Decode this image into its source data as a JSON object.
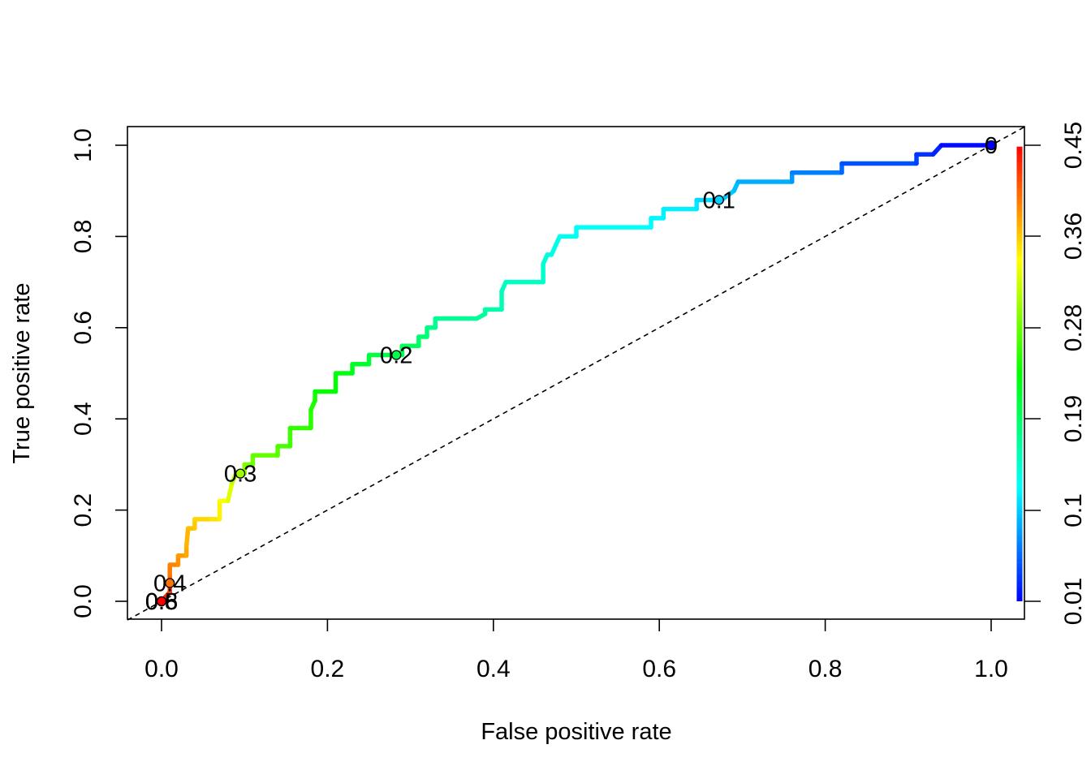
{
  "chart_data": {
    "type": "line",
    "xlabel": "False positive rate",
    "ylabel": "True positive rate",
    "xlim": [
      0,
      1
    ],
    "ylim": [
      0,
      1
    ],
    "x_ticks": [
      0.0,
      0.2,
      0.4,
      0.6,
      0.8,
      1.0
    ],
    "x_tick_labels": [
      "0.0",
      "0.2",
      "0.4",
      "0.6",
      "0.8",
      "1.0"
    ],
    "y_ticks": [
      0.0,
      0.2,
      0.4,
      0.6,
      0.8,
      1.0
    ],
    "y_tick_labels": [
      "0.0",
      "0.2",
      "0.4",
      "0.6",
      "0.8",
      "1.0"
    ],
    "grid": false,
    "diagonal_reference": true,
    "colorbar": {
      "min": 0.01,
      "max": 0.45,
      "ticks": [
        0.01,
        0.1,
        0.19,
        0.28,
        0.36,
        0.45
      ],
      "tick_labels": [
        "0.01",
        "0.1",
        "0.19",
        "0.28",
        "0.36",
        "0.45"
      ],
      "position": "right",
      "palette": "rainbow"
    },
    "roc_curve": {
      "points": [
        [
          0,
          0,
          0.45
        ],
        [
          0.005,
          0.01,
          0.44
        ],
        [
          0.01,
          0.02,
          0.43
        ],
        [
          0.01,
          0.04,
          0.41
        ],
        [
          0.01,
          0.06,
          0.4
        ],
        [
          0.01,
          0.08,
          0.395
        ],
        [
          0.02,
          0.08,
          0.39
        ],
        [
          0.02,
          0.1,
          0.385
        ],
        [
          0.03,
          0.1,
          0.38
        ],
        [
          0.03,
          0.12,
          0.375
        ],
        [
          0.032,
          0.16,
          0.37
        ],
        [
          0.04,
          0.16,
          0.365
        ],
        [
          0.04,
          0.18,
          0.36
        ],
        [
          0.06,
          0.18,
          0.355
        ],
        [
          0.07,
          0.18,
          0.35
        ],
        [
          0.07,
          0.22,
          0.34
        ],
        [
          0.08,
          0.22,
          0.335
        ],
        [
          0.085,
          0.26,
          0.32
        ],
        [
          0.09,
          0.28,
          0.3
        ],
        [
          0.1,
          0.28,
          0.295
        ],
        [
          0.1,
          0.3,
          0.285
        ],
        [
          0.11,
          0.3,
          0.28
        ],
        [
          0.11,
          0.32,
          0.275
        ],
        [
          0.14,
          0.32,
          0.27
        ],
        [
          0.14,
          0.34,
          0.265
        ],
        [
          0.155,
          0.34,
          0.26
        ],
        [
          0.155,
          0.38,
          0.255
        ],
        [
          0.18,
          0.38,
          0.25
        ],
        [
          0.18,
          0.42,
          0.245
        ],
        [
          0.185,
          0.44,
          0.24
        ],
        [
          0.185,
          0.46,
          0.235
        ],
        [
          0.21,
          0.46,
          0.23
        ],
        [
          0.21,
          0.5,
          0.225
        ],
        [
          0.23,
          0.5,
          0.22
        ],
        [
          0.23,
          0.52,
          0.215
        ],
        [
          0.25,
          0.52,
          0.21
        ],
        [
          0.25,
          0.54,
          0.205
        ],
        [
          0.28,
          0.54,
          0.2
        ],
        [
          0.29,
          0.54,
          0.197
        ],
        [
          0.29,
          0.56,
          0.195
        ],
        [
          0.31,
          0.56,
          0.19
        ],
        [
          0.31,
          0.58,
          0.185
        ],
        [
          0.32,
          0.58,
          0.18
        ],
        [
          0.32,
          0.6,
          0.175
        ],
        [
          0.33,
          0.6,
          0.17
        ],
        [
          0.33,
          0.62,
          0.168
        ],
        [
          0.38,
          0.62,
          0.165
        ],
        [
          0.39,
          0.63,
          0.163
        ],
        [
          0.39,
          0.64,
          0.16
        ],
        [
          0.41,
          0.64,
          0.155
        ],
        [
          0.41,
          0.68,
          0.15
        ],
        [
          0.415,
          0.7,
          0.147
        ],
        [
          0.46,
          0.7,
          0.145
        ],
        [
          0.46,
          0.74,
          0.14
        ],
        [
          0.465,
          0.76,
          0.135
        ],
        [
          0.47,
          0.76,
          0.133
        ],
        [
          0.475,
          0.78,
          0.13
        ],
        [
          0.48,
          0.8,
          0.128
        ],
        [
          0.5,
          0.8,
          0.126
        ],
        [
          0.5,
          0.82,
          0.125
        ],
        [
          0.59,
          0.82,
          0.12
        ],
        [
          0.59,
          0.84,
          0.118
        ],
        [
          0.605,
          0.84,
          0.116
        ],
        [
          0.605,
          0.86,
          0.115
        ],
        [
          0.645,
          0.86,
          0.112
        ],
        [
          0.645,
          0.88,
          0.11
        ],
        [
          0.675,
          0.88,
          0.1
        ],
        [
          0.69,
          0.9,
          0.095
        ],
        [
          0.695,
          0.92,
          0.09
        ],
        [
          0.76,
          0.92,
          0.08
        ],
        [
          0.76,
          0.94,
          0.07
        ],
        [
          0.82,
          0.94,
          0.06
        ],
        [
          0.82,
          0.96,
          0.05
        ],
        [
          0.91,
          0.96,
          0.04
        ],
        [
          0.91,
          0.98,
          0.035
        ],
        [
          0.93,
          0.98,
          0.03
        ],
        [
          0.94,
          1.0,
          0.02
        ],
        [
          1.0,
          1.0,
          0.01
        ]
      ],
      "cutoff_labels": [
        {
          "text": "0.4",
          "x": 0.01,
          "y": 0.04
        },
        {
          "text": "0.3",
          "x": 0.095,
          "y": 0.28
        },
        {
          "text": "0.2",
          "x": 0.283,
          "y": 0.54
        },
        {
          "text": "0.1",
          "x": 0.672,
          "y": 0.88
        },
        {
          "text": "0",
          "x": 1.0,
          "y": 1.0
        },
        {
          "text": "0.5",
          "x": 0.0,
          "y": 0.0
        },
        {
          "text": "0.6",
          "x": 0.0,
          "y": 0.0
        },
        {
          "text": "0.8",
          "x": 0.0,
          "y": 0.0
        }
      ]
    }
  }
}
